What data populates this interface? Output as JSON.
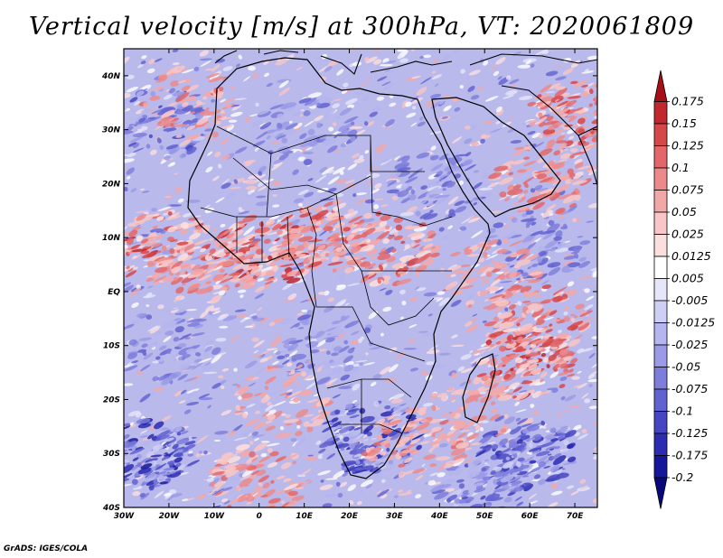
{
  "title": "Vertical velocity [m/s] at 300hPa, VT: 2020061809",
  "credit": "GrADS: IGES/COLA",
  "chart_data": {
    "type": "heatmap",
    "variable": "Vertical velocity",
    "units": "m/s",
    "level": "300hPa",
    "valid_time": "2020061809",
    "lon_range": [
      -30,
      75
    ],
    "lat_range": [
      -40,
      45
    ],
    "lat_ticks": [
      {
        "value": 40,
        "label": "40N"
      },
      {
        "value": 30,
        "label": "30N"
      },
      {
        "value": 20,
        "label": "20N"
      },
      {
        "value": 10,
        "label": "10N"
      },
      {
        "value": 0,
        "label": "EQ"
      },
      {
        "value": -10,
        "label": "10S"
      },
      {
        "value": -20,
        "label": "20S"
      },
      {
        "value": -30,
        "label": "30S"
      },
      {
        "value": -40,
        "label": "40S"
      }
    ],
    "lon_ticks": [
      {
        "value": -30,
        "label": "30W"
      },
      {
        "value": -20,
        "label": "20W"
      },
      {
        "value": -10,
        "label": "10W"
      },
      {
        "value": 0,
        "label": "0"
      },
      {
        "value": 10,
        "label": "10E"
      },
      {
        "value": 20,
        "label": "20E"
      },
      {
        "value": 30,
        "label": "30E"
      },
      {
        "value": 40,
        "label": "40E"
      },
      {
        "value": 50,
        "label": "50E"
      },
      {
        "value": 60,
        "label": "60E"
      },
      {
        "value": 70,
        "label": "70E"
      }
    ],
    "colorbar": {
      "labels": [
        "0.175",
        "0.15",
        "0.125",
        "0.1",
        "0.075",
        "0.05",
        "0.025",
        "0.0125",
        "0.005",
        "-0.005",
        "-0.0125",
        "-0.025",
        "-0.05",
        "-0.075",
        "-0.1",
        "-0.125",
        "-0.175",
        "-0.2"
      ],
      "colors": [
        "#a50f15",
        "#c1272d",
        "#d6474a",
        "#e3676a",
        "#ec8a8b",
        "#f3a8a8",
        "#f8c6c6",
        "#fbdfdf",
        "#ffffff",
        "#e6e6fb",
        "#cfcff5",
        "#b5b5ef",
        "#9a9ae6",
        "#7d7ddc",
        "#6161d0",
        "#4646c2",
        "#2c2cb0",
        "#16169a",
        "#08087a"
      ]
    },
    "features": {
      "positive_bands": [
        {
          "lon": -21,
          "lat": 8,
          "strength": 0.85
        },
        {
          "lon": 2,
          "lat": 7.5,
          "strength": 0.9
        },
        {
          "lon": 15,
          "lat": 10,
          "strength": 0.7
        },
        {
          "lon": 28,
          "lat": 8,
          "strength": 0.7
        },
        {
          "lon": 59,
          "lat": -13,
          "strength": 0.9
        },
        {
          "lon": 62,
          "lat": -5,
          "strength": 0.75
        },
        {
          "lon": 71,
          "lat": 33,
          "strength": 0.8
        },
        {
          "lon": 63,
          "lat": 21,
          "strength": 0.6
        },
        {
          "lon": 0,
          "lat": -35,
          "strength": 0.6
        },
        {
          "lon": 35,
          "lat": -28,
          "strength": 0.5
        },
        {
          "lon": -10,
          "lat": 5,
          "strength": 0.5
        },
        {
          "lon": 52,
          "lat": 3,
          "strength": 0.45
        },
        {
          "lon": -15,
          "lat": 35,
          "strength": 0.45
        },
        {
          "lon": 5,
          "lat": -20,
          "strength": 0.4
        },
        {
          "lon": 45,
          "lat": -22,
          "strength": 0.35
        }
      ],
      "negative_bands": [
        {
          "lon": -25,
          "lat": -30,
          "strength": 0.9
        },
        {
          "lon": 25,
          "lat": -27,
          "strength": 0.85
        },
        {
          "lon": 60,
          "lat": -30,
          "strength": 0.8
        },
        {
          "lon": -22,
          "lat": 31,
          "strength": 0.55
        },
        {
          "lon": 40,
          "lat": 20,
          "strength": 0.45
        },
        {
          "lon": 10,
          "lat": 30,
          "strength": 0.4
        },
        {
          "lon": 60,
          "lat": 8,
          "strength": 0.45
        },
        {
          "lon": -20,
          "lat": -10,
          "strength": 0.4
        },
        {
          "lon": 15,
          "lat": -10,
          "strength": 0.4
        },
        {
          "lon": 50,
          "lat": -38,
          "strength": 0.6
        }
      ]
    }
  }
}
